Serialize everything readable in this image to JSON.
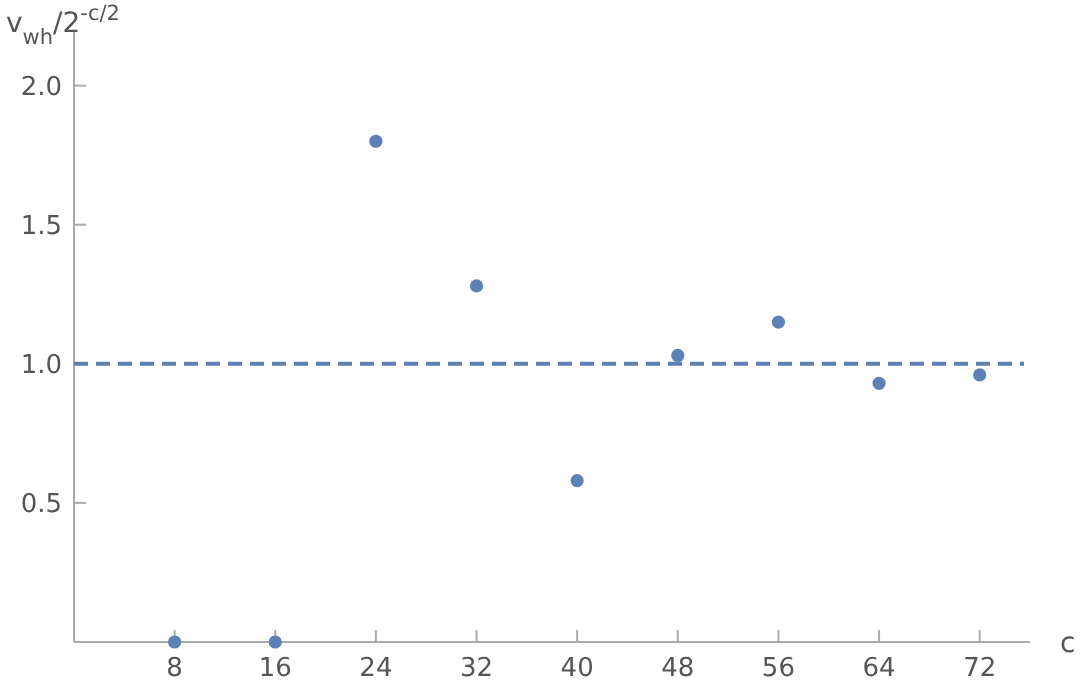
{
  "chart_data": {
    "type": "scatter",
    "xlabel": "c",
    "ylabel": "v$_{wh}$/2$^{-c/2}$",
    "x": [
      8,
      16,
      24,
      32,
      40,
      48,
      56,
      64,
      72
    ],
    "series": [
      {
        "color": "#5e81b5",
        "values": [
          0,
          0,
          1.8,
          1.28,
          0.58,
          1.03,
          1.15,
          0.93,
          0.96
        ]
      }
    ],
    "xlim": [
      0,
      76
    ],
    "ylim": [
      0,
      2.2
    ],
    "xticks": [
      8,
      16,
      24,
      32,
      40,
      48,
      56,
      64,
      72
    ],
    "yticks": [
      0.5,
      {
        "value": 1,
        "label": "1.0"
      },
      1.5,
      {
        "value": 2,
        "label": "2.0"
      }
    ],
    "marker": "circle",
    "grid": false,
    "ref_lines": [
      {
        "axis": "y",
        "value": 1,
        "color": "#5e81b5",
        "line_style": "dashed"
      }
    ]
  }
}
